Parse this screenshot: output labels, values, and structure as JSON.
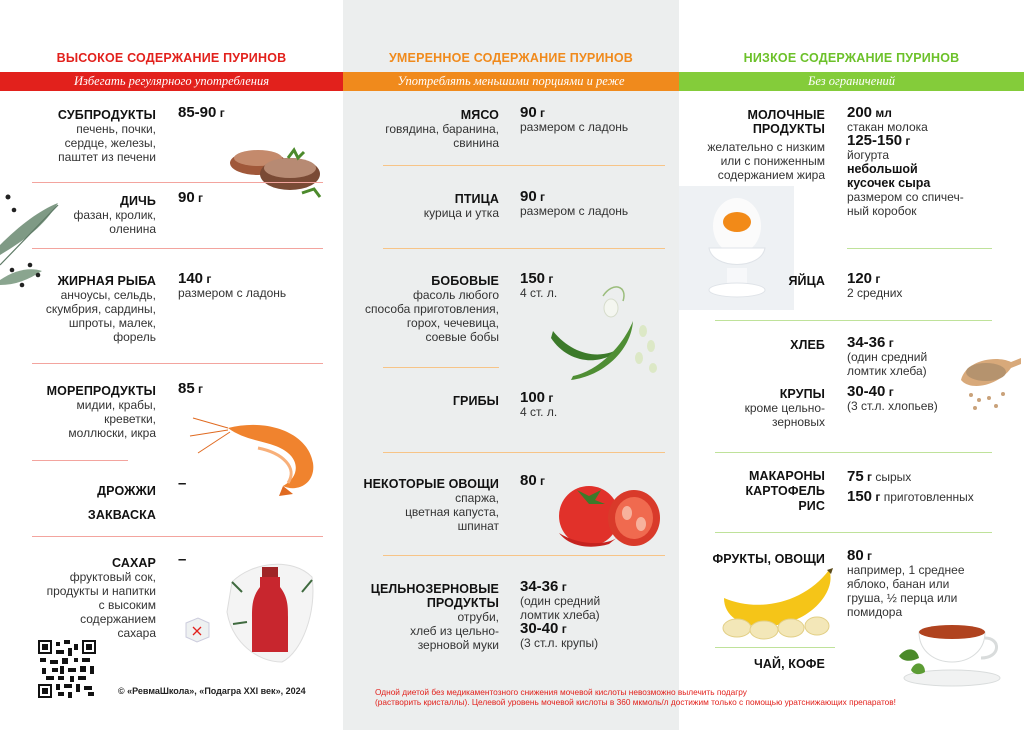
{
  "high": {
    "title": "ВЫСОКОЕ СОДЕРЖАНИЕ ПУРИНОВ",
    "band": "Избегать регулярного употребления",
    "items": [
      {
        "name": "СУБПРОДУКТЫ",
        "desc": [
          "печень, почки,",
          "сердце, железы,",
          "паштет из печени"
        ],
        "amount": "85-90",
        "unit": "г"
      },
      {
        "name": "ДИЧЬ",
        "desc": [
          "фазан, кролик,",
          "оленина"
        ],
        "amount": "90",
        "unit": "г"
      },
      {
        "name": "ЖИРНАЯ РЫБА",
        "desc": [
          "анчоусы, сельдь,",
          "скумбрия, сардины,",
          "шпроты, малек,",
          "форель"
        ],
        "amount": "140",
        "unit": "г",
        "note": "размером с ладонь"
      },
      {
        "name": "МОРЕПРОДУКТЫ",
        "desc": [
          "мидии, крабы,",
          "креветки,",
          "моллюски, икра"
        ],
        "amount": "85",
        "unit": "г"
      },
      {
        "name": "ДРОЖЖИ",
        "name2": "ЗАКВАСКА",
        "amount": "–"
      },
      {
        "name": "САХАР",
        "desc": [
          "фруктовый сок,",
          "продукты и напитки",
          "с высоким",
          "содержанием",
          "сахара"
        ],
        "amount": "–"
      }
    ]
  },
  "moderate": {
    "title": "УМЕРЕННОЕ СОДЕРЖАНИЕ ПУРИНОВ",
    "band": "Употреблять меньшими порциями и реже",
    "items": [
      {
        "name": "МЯСО",
        "desc": [
          "говядина, баранина,",
          "свинина"
        ],
        "amount": "90",
        "unit": "г",
        "note": "размером с ладонь"
      },
      {
        "name": "ПТИЦА",
        "desc": [
          "курица и утка"
        ],
        "amount": "90",
        "unit": "г",
        "note": "размером с ладонь"
      },
      {
        "name": "БОБОВЫЕ",
        "desc": [
          "фасоль любого",
          "способа приготовления,",
          "горох, чечевица,",
          "соевые бобы"
        ],
        "amount": "150",
        "unit": "г",
        "note": "4 ст. л."
      },
      {
        "name": "ГРИБЫ",
        "amount": "100",
        "unit": "г",
        "note": "4 ст. л."
      },
      {
        "name": "НЕКОТОРЫЕ ОВОЩИ",
        "desc": [
          "спаржа,",
          "цветная капуста,",
          "шпинат"
        ],
        "amount": "80",
        "unit": "г"
      },
      {
        "name": "ЦЕЛЬНОЗЕРНОВЫЕ",
        "name2": "ПРОДУКТЫ",
        "desc": [
          "отруби,",
          "хлеб из цельно-",
          "зерновой муки"
        ],
        "amount": "34-36",
        "unit": "г",
        "note": [
          "(один средний",
          "ломтик хлеба)"
        ],
        "amount2": "30-40",
        "note2": "(3 ст.л. крупы)"
      }
    ]
  },
  "low": {
    "title": "НИЗКОЕ СОДЕРЖАНИЕ ПУРИНОВ",
    "band": "Без ограничений",
    "items": [
      {
        "name": "МОЛОЧНЫЕ",
        "name2": "ПРОДУКТЫ",
        "desc": [
          "желательно с низким",
          "или с пониженным",
          "содержанием жира"
        ],
        "amount": "200",
        "unit": "мл",
        "note": "стакан молока",
        "amount2": "125-150",
        "note2": "йогурта",
        "extra": [
          "небольшой",
          "кусочек сыра"
        ],
        "extra_note": [
          "размером со спичеч-",
          "ный коробок"
        ]
      },
      {
        "name": "ЯЙЦА",
        "amount": "120",
        "unit": "г",
        "note": "2 средних"
      },
      {
        "name": "ХЛЕБ",
        "amount": "34-36",
        "unit": "г",
        "note": [
          "(один средний",
          "ломтик хлеба)"
        ]
      },
      {
        "name": "КРУПЫ",
        "desc": [
          "кроме цельно-",
          "зерновых"
        ],
        "amount": "30-40",
        "unit": "г",
        "note": "(3 ст.л. хлопьев)"
      },
      {
        "name": "МАКАРОНЫ",
        "name2": "КАРТОФЕЛЬ",
        "name3": "РИС",
        "amount": "75",
        "unit": "г",
        "note": "сырых",
        "amount2": "150",
        "note2": "приготовленных"
      },
      {
        "name": "ФРУКТЫ, ОВОЩИ",
        "amount": "80",
        "unit": "г",
        "note": [
          "например, 1 среднее",
          "яблоко, банан или",
          "груша, ½ перца или",
          "помидора"
        ]
      },
      {
        "name": "ЧАЙ, КОФЕ"
      }
    ]
  },
  "footer": {
    "copyright": "© «РевмаШкола», «Подагра XXI век», 2024",
    "warning_1": "Одной диетой без медикаментозного снижения мочевой кислоты невозможно вылечить подагру",
    "warning_2": "(растворить кристаллы). Целевой уровень мочевой кислоты в 360 мкмоль/л достижим только с помощью уратснижающих препаратов!"
  },
  "colors": {
    "high": "#e2211c",
    "moderate": "#f08a1c",
    "low": "#84cc3a"
  },
  "icons": [
    "liver-pate-image",
    "eucalyptus-peppercorn-image",
    "shrimp-image",
    "sugar-bottle-image",
    "sugar-cube-image",
    "qr-code-icon",
    "green-bean-image",
    "tomato-image",
    "egg-in-cup-image",
    "buckwheat-spoon-image",
    "banana-image",
    "tea-cup-image"
  ]
}
